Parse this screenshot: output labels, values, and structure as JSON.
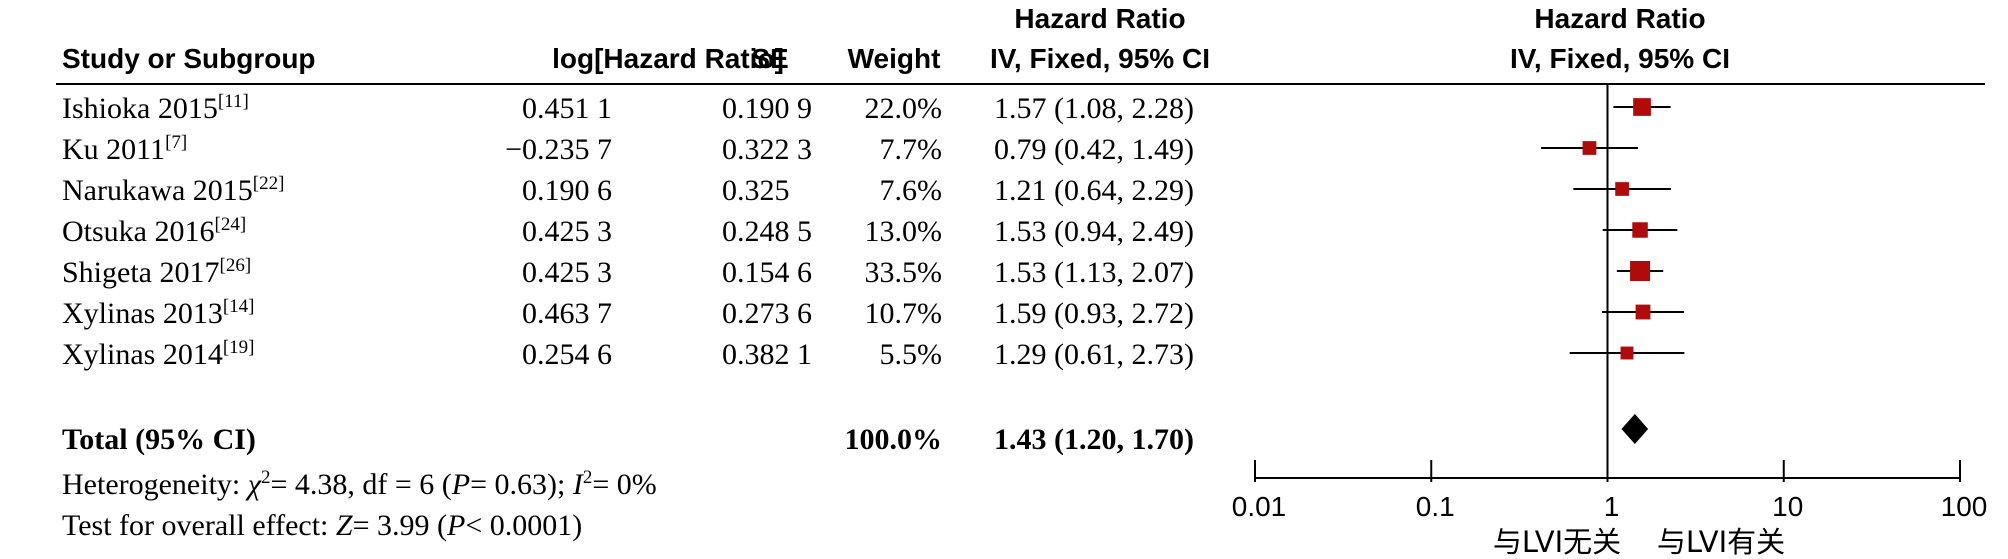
{
  "headers": {
    "study": "Study or Subgroup",
    "log_hr": "log[Hazard Ratio]",
    "se": "SE",
    "weight": "Weight",
    "hr_top": "Hazard Ratio",
    "hr_method": "IV, Fixed, 95% CI",
    "plot_top": "Hazard Ratio",
    "plot_method": "IV, Fixed, 95% CI"
  },
  "total": {
    "label": "Total (95% CI)",
    "weight": "100.0%",
    "ci_text": "1.43 (1.20, 1.70)"
  },
  "footer": {
    "het_prefix": "Heterogeneity: ",
    "het_chi": "χ",
    "het_chi_sup": "2",
    "het_mid1": "= 4.38, df = 6 (",
    "het_p": "P",
    "het_mid2": "= 0.63); ",
    "het_i": "I",
    "het_i_sup": "2",
    "het_end": "= 0%",
    "test_prefix": "Test for overall effect: ",
    "test_z": "Z",
    "test_mid": "= 3.99 (",
    "test_p": "P",
    "test_end": "< 0.0001)"
  },
  "axis": {
    "tick_labels": [
      "0.01",
      "0.1",
      "1",
      "10",
      "100"
    ],
    "favours_left": "与LVI无关",
    "favours_right": "与LVI有关"
  },
  "colors": {
    "marker": "#b10a0a",
    "line": "#000000",
    "diamond": "#000000"
  },
  "chart_data": {
    "type": "forest",
    "scale": "log",
    "xlim": [
      0.01,
      100
    ],
    "reference_line": 1,
    "studies": [
      {
        "name": "Ishioka 2015",
        "ref": "[11]",
        "log_hr": "0.451 1",
        "se": "0.190 9",
        "weight": "22.0%",
        "ci_text": "1.57 (1.08, 2.28)",
        "hr": 1.57,
        "lo": 1.08,
        "hi": 2.28,
        "w": 22.0
      },
      {
        "name": "Ku 2011",
        "ref": "[7]",
        "log_hr": "−0.235 7",
        "se": "0.322 3",
        "weight": "7.7%",
        "ci_text": "0.79 (0.42, 1.49)",
        "hr": 0.79,
        "lo": 0.42,
        "hi": 1.49,
        "w": 7.7
      },
      {
        "name": "Narukawa 2015",
        "ref": "[22]",
        "log_hr": "0.190 6",
        "se": "0.325",
        "weight": "7.6%",
        "ci_text": "1.21 (0.64, 2.29)",
        "hr": 1.21,
        "lo": 0.64,
        "hi": 2.29,
        "w": 7.6
      },
      {
        "name": "Otsuka 2016",
        "ref": "[24]",
        "log_hr": "0.425 3",
        "se": "0.248 5",
        "weight": "13.0%",
        "ci_text": "1.53 (0.94, 2.49)",
        "hr": 1.53,
        "lo": 0.94,
        "hi": 2.49,
        "w": 13.0
      },
      {
        "name": "Shigeta 2017",
        "ref": "[26]",
        "log_hr": "0.425 3",
        "se": "0.154 6",
        "weight": "33.5%",
        "ci_text": "1.53 (1.13, 2.07)",
        "hr": 1.53,
        "lo": 1.13,
        "hi": 2.07,
        "w": 33.5
      },
      {
        "name": "Xylinas 2013",
        "ref": "[14]",
        "log_hr": "0.463 7",
        "se": "0.273 6",
        "weight": "10.7%",
        "ci_text": "1.59 (0.93, 2.72)",
        "hr": 1.59,
        "lo": 0.93,
        "hi": 2.72,
        "w": 10.7
      },
      {
        "name": "Xylinas 2014",
        "ref": "[19]",
        "log_hr": "0.254 6",
        "se": "0.382 1",
        "weight": "5.5%",
        "ci_text": "1.29 (0.61, 2.73)",
        "hr": 1.29,
        "lo": 0.61,
        "hi": 2.73,
        "w": 5.5
      }
    ],
    "pooled": {
      "hr": 1.43,
      "lo": 1.2,
      "hi": 1.7
    }
  }
}
